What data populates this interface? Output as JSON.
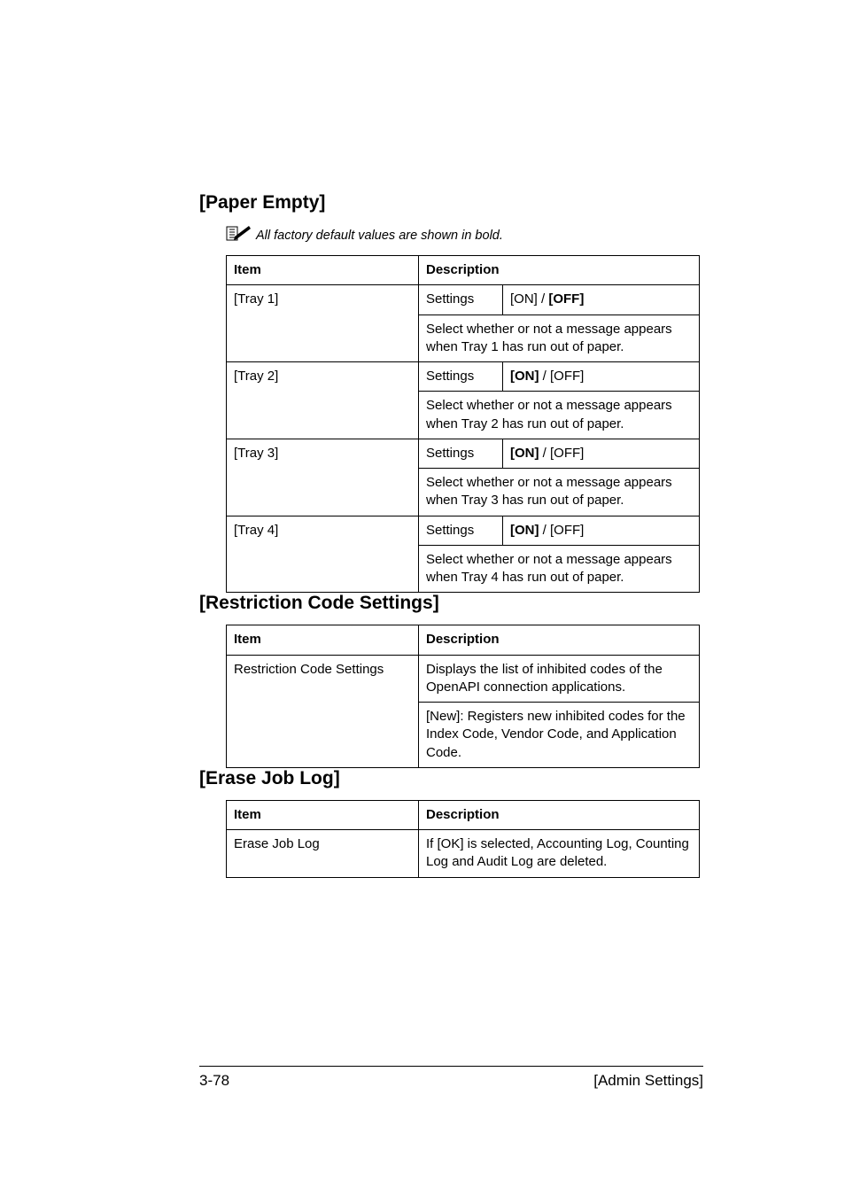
{
  "paper_empty": {
    "heading": "[Paper Empty]",
    "note": "All factory default values are shown in bold.",
    "headers": {
      "item": "Item",
      "desc": "Description"
    },
    "settings_label": "Settings",
    "rows": [
      {
        "item": "[Tray 1]",
        "off_default": true,
        "desc": "Select whether or not a message appears when Tray 1 has run out of paper."
      },
      {
        "item": "[Tray 2]",
        "off_default": false,
        "desc": "Select whether or not a message appears when Tray 2 has run out of paper."
      },
      {
        "item": "[Tray 3]",
        "off_default": false,
        "desc": "Select whether or not a message appears when Tray 3 has run out of paper."
      },
      {
        "item": "[Tray 4]",
        "off_default": false,
        "desc": "Select whether or not a message appears when Tray 4 has run out of paper."
      }
    ],
    "on_label": "[ON]",
    "off_label": "[OFF]",
    "sep": " / "
  },
  "restriction": {
    "heading": "[Restriction Code Settings]",
    "headers": {
      "item": "Item",
      "desc": "Description"
    },
    "row": {
      "item": "Restriction Code Settings",
      "desc1": "Displays the list of inhibited codes of the OpenAPI connection applications.",
      "desc2": "[New]: Registers new inhibited codes for the Index Code, Vendor Code, and Application Code."
    }
  },
  "erase": {
    "heading": "[Erase Job Log]",
    "headers": {
      "item": "Item",
      "desc": "Description"
    },
    "row": {
      "item": "Erase Job Log",
      "desc": "If [OK] is selected, Accounting Log, Counting Log and Audit Log are deleted."
    }
  },
  "footer": {
    "left": "3-78",
    "right": "[Admin Settings]"
  }
}
